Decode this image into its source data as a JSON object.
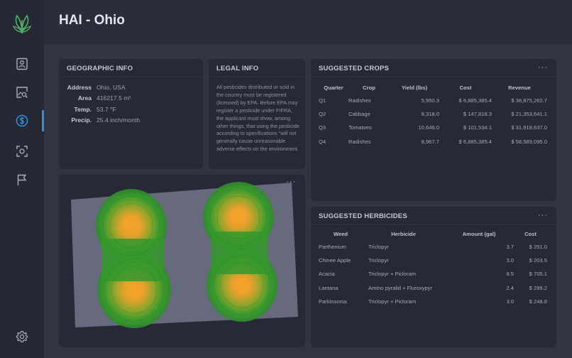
{
  "app": {
    "title": "HAI - Ohio",
    "brand_color": "#2f8fe0"
  },
  "sidebar": {
    "items": [
      {
        "name": "profile",
        "icon": "id-card-icon",
        "active": false
      },
      {
        "name": "image-analysis",
        "icon": "image-search-icon",
        "active": false
      },
      {
        "name": "finance",
        "icon": "dollar-circle-icon",
        "active": true
      },
      {
        "name": "scan",
        "icon": "scan-icon",
        "active": false
      },
      {
        "name": "flags",
        "icon": "flag-icon",
        "active": false
      },
      {
        "name": "settings",
        "icon": "gear-icon",
        "active": false
      }
    ]
  },
  "geo": {
    "title": "GEOGRAPHIC INFO",
    "rows": [
      {
        "label": "Address",
        "value": "Ohio, USA"
      },
      {
        "label": "Area",
        "value": "416217.5 m²"
      },
      {
        "label": "Temp.",
        "value": "53.7 °F"
      },
      {
        "label": "Precip.",
        "value": "25.4 inch/month"
      }
    ]
  },
  "legal": {
    "title": "LEGAL INFO",
    "text": "All pesticides distributed or sold in the country must be registered (licensed) by EPA. Before EPA may register a pesticide under FIFRA, the applicant must show, among other things, that using the pesticide according to specifications \"will not generally cause unreasonable adverse effects on the environment."
  },
  "crops": {
    "title": "SUGGESTED CROPS",
    "more": "···",
    "columns": [
      "Quarter",
      "Crop",
      "Yield (lbs)",
      "Cost",
      "Revenue"
    ],
    "rows": [
      [
        "Q1",
        "Radishes",
        "5,950.3",
        "$ 6,885,385.4",
        "$ 38,875,262.7"
      ],
      [
        "Q2",
        "Cabbage",
        "8,318.0",
        "$ 147,818.3",
        "$ 21,353,641.1"
      ],
      [
        "Q3",
        "Tomatoes",
        "10,646.0",
        "$ 101,534.1",
        "$ 31,918,637.0"
      ],
      [
        "Q4",
        "Radishes",
        "8,967.7",
        "$ 6,885,385.4",
        "$ 58,589,095.0"
      ]
    ]
  },
  "herbicides": {
    "title": "SUGGESTED HERBICIDES",
    "more": "···",
    "columns": [
      "Weed",
      "Herbicide",
      "Amount (gal)",
      "Cost"
    ],
    "rows": [
      [
        "Parthenium",
        "Triclopyr",
        "3.7",
        "$ 251.0"
      ],
      [
        "Chinee Apple",
        "Triclopyr",
        "3.0",
        "$ 203.5"
      ],
      [
        "Acacia",
        "Triclopyr + Picloram",
        "8.5",
        "$ 705.1"
      ],
      [
        "Lantana",
        "Amino pyralid + Fluroxypyr",
        "2.4",
        "$ 299.2"
      ],
      [
        "Parkinsonia",
        "Triclopyr + Picloram",
        "3.0",
        "$ 248.8"
      ]
    ]
  },
  "map": {
    "more": "···",
    "field_color": "#676a7c",
    "heat_colors": [
      "#2f9a2c",
      "#f0a22a"
    ]
  }
}
